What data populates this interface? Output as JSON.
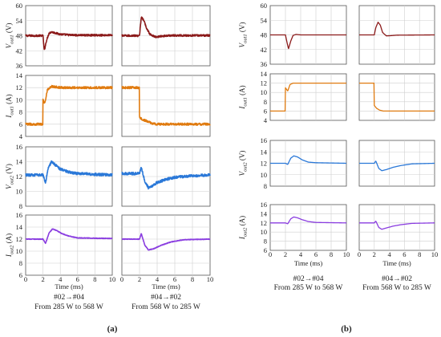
{
  "panel_labels": {
    "a": "(a)",
    "b": "(b)"
  },
  "captions": [
    {
      "panel": "a",
      "column": 0,
      "line1": "#02→#04",
      "line2": "From 285 W to 568 W"
    },
    {
      "panel": "a",
      "column": 1,
      "line1": "#04→#02",
      "line2": "From 568 W to 285 W"
    },
    {
      "panel": "b",
      "column": 0,
      "line1": "#02→#04",
      "line2": "From 285 W to 568 W"
    },
    {
      "panel": "b",
      "column": 1,
      "line1": "#04→#02",
      "line2": "From 568 W to 285 W"
    }
  ],
  "xlabel": "Time (ms)",
  "rows": [
    {
      "ylabel_base": "V",
      "ylabel_sub": "out1",
      "ylabel_unit": " (V)",
      "yticks": [
        36,
        42,
        48,
        54,
        60
      ],
      "color": "#8b1a1a",
      "ylim": [
        36,
        60
      ]
    },
    {
      "ylabel_base": "I",
      "ylabel_sub": "out1",
      "ylabel_unit": " (A)",
      "yticks": [
        4,
        6,
        8,
        10,
        12,
        14
      ],
      "color": "#e07b10",
      "ylim": [
        4,
        14
      ]
    },
    {
      "ylabel_base": "V",
      "ylabel_sub": "out2",
      "ylabel_unit": " (V)",
      "yticks": [
        8,
        10,
        12,
        14,
        16
      ],
      "color": "#2a78d8",
      "ylim": [
        8,
        16
      ]
    },
    {
      "ylabel_base": "I",
      "ylabel_sub": "out2",
      "ylabel_unit": " (A)",
      "yticks": [
        6,
        8,
        10,
        12,
        14,
        16
      ],
      "color": "#8a3de0",
      "ylim": [
        6,
        16
      ]
    }
  ],
  "chart_data": {
    "type": "line",
    "xlim": [
      0,
      10
    ],
    "xticks": [
      0,
      2,
      4,
      6,
      8,
      10
    ],
    "grid": true,
    "panels": [
      {
        "panel": "a",
        "row": 0,
        "column": 0,
        "noise": 0.15,
        "x": [
          0,
          2,
          2.15,
          2.4,
          2.7,
          3.0,
          3.5,
          4,
          5,
          6,
          10
        ],
        "y": [
          48,
          48,
          42,
          46,
          49,
          49.5,
          49,
          48.6,
          48.3,
          48.2,
          48.2
        ]
      },
      {
        "panel": "a",
        "row": 0,
        "column": 1,
        "noise": 0.15,
        "x": [
          0,
          2,
          2.2,
          2.5,
          2.8,
          3.2,
          3.8,
          4.5,
          5,
          6,
          10
        ],
        "y": [
          48,
          48,
          55.5,
          54,
          51,
          48.5,
          47.5,
          47.8,
          48,
          48.1,
          48.1
        ]
      },
      {
        "panel": "a",
        "row": 1,
        "column": 0,
        "noise": 0.18,
        "x": [
          0,
          1.99,
          2.0,
          2.2,
          2.5,
          3,
          3.5,
          4,
          6,
          10
        ],
        "y": [
          6,
          6,
          10,
          9.4,
          11.6,
          12.2,
          12.1,
          12,
          12,
          12
        ]
      },
      {
        "panel": "a",
        "row": 1,
        "column": 1,
        "noise": 0.18,
        "x": [
          0,
          1.99,
          2.0,
          2.3,
          3,
          3.5,
          4,
          6,
          10
        ],
        "y": [
          12,
          12,
          7.2,
          6.8,
          6.4,
          6.1,
          6,
          6,
          6
        ]
      },
      {
        "panel": "a",
        "row": 2,
        "column": 0,
        "noise": 0.22,
        "x": [
          0,
          2,
          2.3,
          2.6,
          3,
          3.5,
          4,
          5,
          6,
          10
        ],
        "y": [
          12.2,
          12.2,
          11.2,
          13.2,
          14,
          13.5,
          13,
          12.6,
          12.4,
          12.2
        ]
      },
      {
        "panel": "a",
        "row": 2,
        "column": 1,
        "noise": 0.22,
        "x": [
          0,
          2,
          2.2,
          2.6,
          3,
          3.5,
          4,
          5,
          6,
          8,
          10
        ],
        "y": [
          12.4,
          12.4,
          13.2,
          11.4,
          10.5,
          10.8,
          11.2,
          11.6,
          11.9,
          12.1,
          12.2
        ]
      },
      {
        "panel": "a",
        "row": 3,
        "column": 0,
        "noise": 0.05,
        "x": [
          0,
          2,
          2.3,
          2.7,
          3.1,
          3.6,
          4.2,
          5,
          6,
          10
        ],
        "y": [
          12,
          12,
          11.3,
          13,
          13.7,
          13.4,
          12.9,
          12.5,
          12.2,
          12.1
        ]
      },
      {
        "panel": "a",
        "row": 3,
        "column": 1,
        "noise": 0.05,
        "x": [
          0,
          2,
          2.2,
          2.6,
          3,
          3.6,
          4.5,
          5.5,
          7,
          10
        ],
        "y": [
          12,
          12,
          12.9,
          11,
          10.2,
          10.4,
          11,
          11.5,
          11.9,
          12
        ]
      },
      {
        "panel": "b",
        "row": 0,
        "column": 0,
        "noise": 0.0,
        "x": [
          0,
          2,
          2.2,
          2.4,
          2.7,
          3.0,
          3.4,
          4,
          5,
          10
        ],
        "y": [
          48,
          48,
          45,
          42.3,
          45.5,
          47.8,
          48.2,
          48,
          48,
          48
        ]
      },
      {
        "panel": "b",
        "row": 0,
        "column": 1,
        "noise": 0.0,
        "x": [
          0,
          2,
          2.2,
          2.5,
          2.8,
          3.1,
          3.6,
          4.2,
          5,
          10
        ],
        "y": [
          48,
          48,
          51,
          53.2,
          52,
          49,
          47.6,
          47.7,
          47.9,
          48
        ]
      },
      {
        "panel": "b",
        "row": 1,
        "column": 0,
        "noise": 0.0,
        "x": [
          0,
          1.99,
          2.0,
          2.3,
          2.6,
          3,
          4,
          10
        ],
        "y": [
          6,
          6,
          11,
          10.3,
          11.7,
          12,
          12,
          12
        ]
      },
      {
        "panel": "b",
        "row": 1,
        "column": 1,
        "noise": 0.0,
        "x": [
          0,
          1.99,
          2.0,
          2.3,
          2.7,
          3.2,
          4,
          10
        ],
        "y": [
          12,
          12,
          7.2,
          6.6,
          6.2,
          6,
          6,
          6
        ]
      },
      {
        "panel": "b",
        "row": 2,
        "column": 0,
        "noise": 0.0,
        "x": [
          0,
          2,
          2.3,
          2.7,
          3.1,
          3.6,
          4.2,
          5,
          6,
          10
        ],
        "y": [
          12,
          12,
          11.8,
          12.9,
          13.3,
          13.1,
          12.6,
          12.2,
          12.1,
          12
        ]
      },
      {
        "panel": "b",
        "row": 2,
        "column": 1,
        "noise": 0.0,
        "x": [
          0,
          2,
          2.2,
          2.6,
          3,
          3.6,
          4.5,
          5.5,
          7,
          10
        ],
        "y": [
          12,
          12,
          12.4,
          11.1,
          10.7,
          10.9,
          11.3,
          11.6,
          11.9,
          12
        ]
      },
      {
        "panel": "b",
        "row": 3,
        "column": 0,
        "noise": 0.0,
        "x": [
          0,
          2,
          2.3,
          2.7,
          3.1,
          3.6,
          4.2,
          5,
          6,
          10
        ],
        "y": [
          12,
          12,
          11.8,
          12.9,
          13.3,
          13.1,
          12.7,
          12.3,
          12.1,
          12
        ]
      },
      {
        "panel": "b",
        "row": 3,
        "column": 1,
        "noise": 0.0,
        "x": [
          0,
          2,
          2.2,
          2.6,
          3,
          3.6,
          4.5,
          5.5,
          7,
          10
        ],
        "y": [
          12,
          12,
          12.4,
          11,
          10.6,
          10.9,
          11.3,
          11.6,
          11.9,
          12
        ]
      }
    ]
  }
}
